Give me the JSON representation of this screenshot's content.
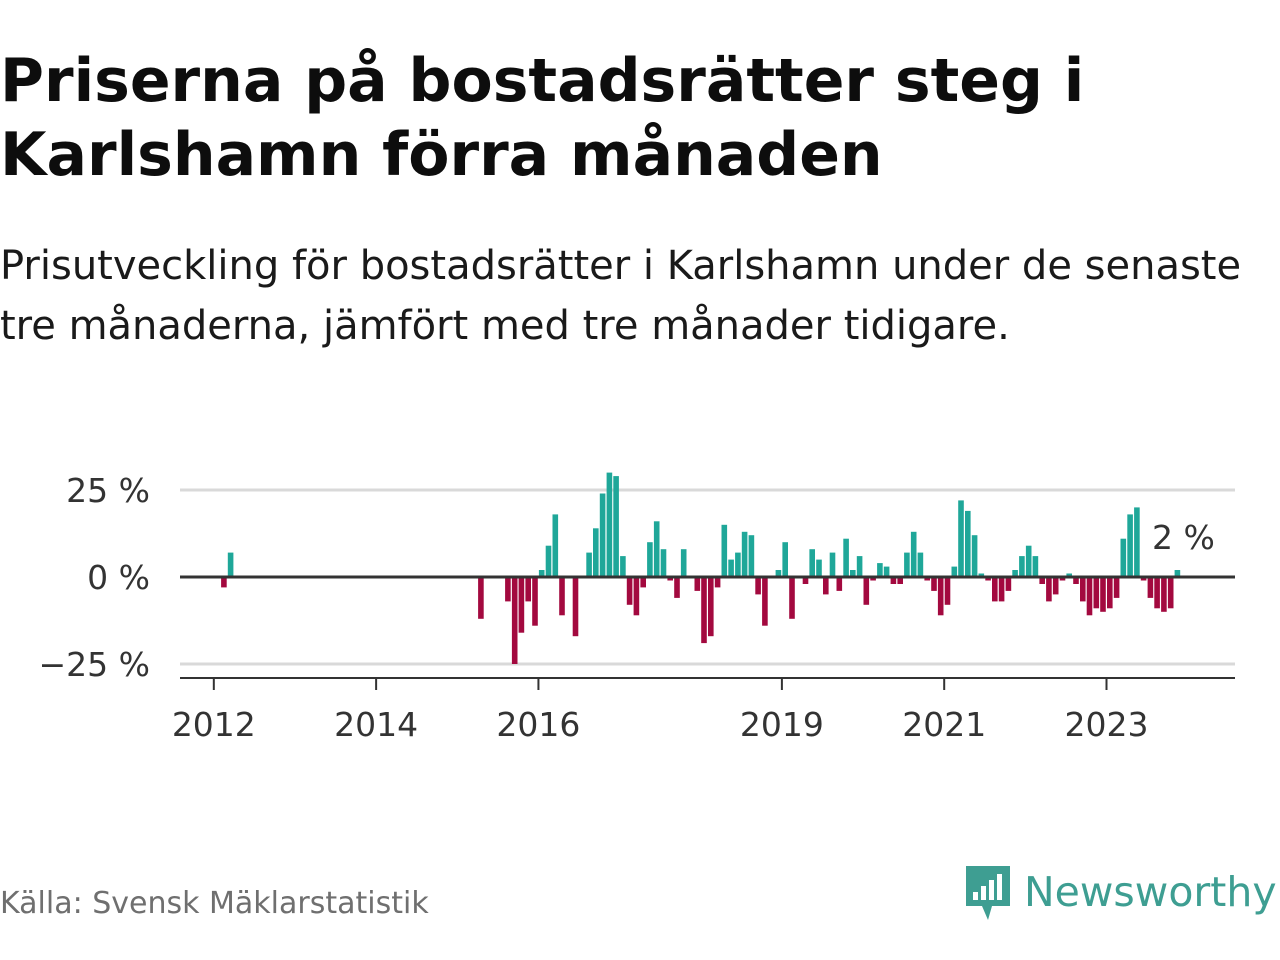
{
  "title": "Priserna på bostadsrätter steg i Karlshamn förra månaden",
  "subtitle": "Prisutveckling för bostadsrätter i Karlshamn under de senaste tre månaderna, jämfört med tre månader tidigare.",
  "source": "Källa: Svensk Mäklarstatistik",
  "logo_text": "Newsworthy",
  "colors": {
    "positive": "#1fa799",
    "negative": "#a3093f",
    "grid": "#d9d9d9",
    "zero_line": "#333333",
    "logo": "#3e9e92"
  },
  "chart_data": {
    "type": "bar",
    "x_start": "2011-08",
    "x_end": "2024-08",
    "ylim": [
      -30,
      35
    ],
    "y_ticks": [
      25,
      0,
      -25
    ],
    "y_tick_labels": [
      "25 %",
      "0 %",
      "−25 %"
    ],
    "x_ticks": [
      {
        "label": "2012",
        "date": "2012-01"
      },
      {
        "label": "2014",
        "date": "2014-01"
      },
      {
        "label": "2016",
        "date": "2016-01"
      },
      {
        "label": "2019",
        "date": "2019-01"
      },
      {
        "label": "2021",
        "date": "2021-01"
      },
      {
        "label": "2023",
        "date": "2023-01"
      }
    ],
    "end_label": "2 %",
    "data": [
      {
        "date": "2012-02",
        "value": -3
      },
      {
        "date": "2012-03",
        "value": 7
      },
      {
        "date": "2015-04",
        "value": -12
      },
      {
        "date": "2015-08",
        "value": -7
      },
      {
        "date": "2015-09",
        "value": -25
      },
      {
        "date": "2015-10",
        "value": -16
      },
      {
        "date": "2015-11",
        "value": -7
      },
      {
        "date": "2015-12",
        "value": -14
      },
      {
        "date": "2016-01",
        "value": 2
      },
      {
        "date": "2016-02",
        "value": 9
      },
      {
        "date": "2016-03",
        "value": 18
      },
      {
        "date": "2016-04",
        "value": -11
      },
      {
        "date": "2016-06",
        "value": -17
      },
      {
        "date": "2016-08",
        "value": 7
      },
      {
        "date": "2016-09",
        "value": 14
      },
      {
        "date": "2016-10",
        "value": 24
      },
      {
        "date": "2016-11",
        "value": 30
      },
      {
        "date": "2016-12",
        "value": 29
      },
      {
        "date": "2017-01",
        "value": 6
      },
      {
        "date": "2017-02",
        "value": -8
      },
      {
        "date": "2017-03",
        "value": -11
      },
      {
        "date": "2017-04",
        "value": -3
      },
      {
        "date": "2017-05",
        "value": 10
      },
      {
        "date": "2017-06",
        "value": 16
      },
      {
        "date": "2017-07",
        "value": 8
      },
      {
        "date": "2017-08",
        "value": -1
      },
      {
        "date": "2017-09",
        "value": -6
      },
      {
        "date": "2017-10",
        "value": 8
      },
      {
        "date": "2017-12",
        "value": -4
      },
      {
        "date": "2018-01",
        "value": -19
      },
      {
        "date": "2018-02",
        "value": -17
      },
      {
        "date": "2018-03",
        "value": -3
      },
      {
        "date": "2018-04",
        "value": 15
      },
      {
        "date": "2018-05",
        "value": 5
      },
      {
        "date": "2018-06",
        "value": 7
      },
      {
        "date": "2018-07",
        "value": 13
      },
      {
        "date": "2018-08",
        "value": 12
      },
      {
        "date": "2018-09",
        "value": -5
      },
      {
        "date": "2018-10",
        "value": -14
      },
      {
        "date": "2018-12",
        "value": 2
      },
      {
        "date": "2019-01",
        "value": 10
      },
      {
        "date": "2019-02",
        "value": -12
      },
      {
        "date": "2019-04",
        "value": -2
      },
      {
        "date": "2019-05",
        "value": 8
      },
      {
        "date": "2019-06",
        "value": 5
      },
      {
        "date": "2019-07",
        "value": -5
      },
      {
        "date": "2019-08",
        "value": 7
      },
      {
        "date": "2019-09",
        "value": -4
      },
      {
        "date": "2019-10",
        "value": 11
      },
      {
        "date": "2019-11",
        "value": 2
      },
      {
        "date": "2019-12",
        "value": 6
      },
      {
        "date": "2020-01",
        "value": -8
      },
      {
        "date": "2020-02",
        "value": -1
      },
      {
        "date": "2020-03",
        "value": 4
      },
      {
        "date": "2020-04",
        "value": 3
      },
      {
        "date": "2020-05",
        "value": -2
      },
      {
        "date": "2020-06",
        "value": -2
      },
      {
        "date": "2020-07",
        "value": 7
      },
      {
        "date": "2020-08",
        "value": 13
      },
      {
        "date": "2020-09",
        "value": 7
      },
      {
        "date": "2020-10",
        "value": -1
      },
      {
        "date": "2020-11",
        "value": -4
      },
      {
        "date": "2020-12",
        "value": -11
      },
      {
        "date": "2021-01",
        "value": -8
      },
      {
        "date": "2021-02",
        "value": 3
      },
      {
        "date": "2021-03",
        "value": 22
      },
      {
        "date": "2021-04",
        "value": 19
      },
      {
        "date": "2021-05",
        "value": 12
      },
      {
        "date": "2021-06",
        "value": 1
      },
      {
        "date": "2021-07",
        "value": -1
      },
      {
        "date": "2021-08",
        "value": -7
      },
      {
        "date": "2021-09",
        "value": -7
      },
      {
        "date": "2021-10",
        "value": -4
      },
      {
        "date": "2021-11",
        "value": 2
      },
      {
        "date": "2021-12",
        "value": 6
      },
      {
        "date": "2022-01",
        "value": 9
      },
      {
        "date": "2022-02",
        "value": 6
      },
      {
        "date": "2022-03",
        "value": -2
      },
      {
        "date": "2022-04",
        "value": -7
      },
      {
        "date": "2022-05",
        "value": -5
      },
      {
        "date": "2022-06",
        "value": -1
      },
      {
        "date": "2022-07",
        "value": 1
      },
      {
        "date": "2022-08",
        "value": -2
      },
      {
        "date": "2022-09",
        "value": -7
      },
      {
        "date": "2022-10",
        "value": -11
      },
      {
        "date": "2022-11",
        "value": -9
      },
      {
        "date": "2022-12",
        "value": -10
      },
      {
        "date": "2023-01",
        "value": -9
      },
      {
        "date": "2023-02",
        "value": -6
      },
      {
        "date": "2023-03",
        "value": 11
      },
      {
        "date": "2023-04",
        "value": 18
      },
      {
        "date": "2023-05",
        "value": 20
      },
      {
        "date": "2023-06",
        "value": -1
      },
      {
        "date": "2023-07",
        "value": -6
      },
      {
        "date": "2023-08",
        "value": -9
      },
      {
        "date": "2023-09",
        "value": -10
      },
      {
        "date": "2023-10",
        "value": -9
      },
      {
        "date": "2023-11",
        "value": 2
      }
    ]
  }
}
